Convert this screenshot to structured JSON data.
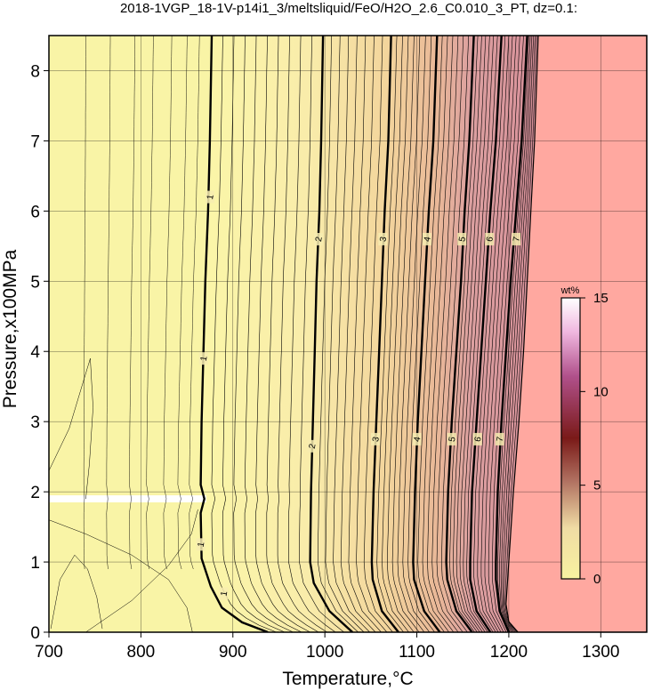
{
  "chart_data": {
    "type": "heatmap",
    "title": "2018-1VGP_18-1V-p14i1_3/meltsliquid/FeO/H2O_2.6_C0.010_3_PT, dz=0.1:",
    "xlabel": "Temperature,°C",
    "ylabel": "Pressure,x100MPa",
    "xlim": [
      700,
      1350
    ],
    "ylim": [
      0,
      8.5
    ],
    "x_ticks": [
      700,
      800,
      900,
      1000,
      1100,
      1200,
      1300
    ],
    "y_ticks": [
      0,
      1,
      2,
      3,
      4,
      5,
      6,
      7,
      8
    ],
    "grid": true,
    "colorbar": {
      "unit": "wt%",
      "range": [
        0,
        15
      ],
      "ticks": [
        0,
        5,
        10,
        15
      ],
      "colors": [
        "#f5f0a0",
        "#f0dba0",
        "#d8a08a",
        "#8a2a20",
        "#c060a0",
        "#ffffff"
      ]
    },
    "background_color": "#f9f4a6",
    "high_region_color": "#ffa8a0",
    "gap_band_pressure": 1.9,
    "major_contours": [
      {
        "level": "1",
        "path": [
          [
            938,
            0
          ],
          [
            910,
            0.14
          ],
          [
            888,
            0.35
          ],
          [
            876,
            0.65
          ],
          [
            866,
            1.05
          ],
          [
            865,
            1.7
          ],
          [
            869,
            1.9
          ],
          [
            865,
            2.1
          ],
          [
            866,
            3.0
          ],
          [
            868,
            4.0
          ],
          [
            870,
            5.0
          ],
          [
            873,
            6.0
          ],
          [
            875,
            7.0
          ],
          [
            877,
            8.5
          ]
        ],
        "label_points": [
          [
            875,
            6.2
          ],
          [
            868,
            3.9
          ],
          [
            865,
            1.25
          ],
          [
            890,
            0.55
          ]
        ]
      },
      {
        "level": "2",
        "path": [
          [
            1030,
            0
          ],
          [
            1005,
            0.3
          ],
          [
            988,
            0.7
          ],
          [
            984,
            1.0
          ],
          [
            985,
            2.0
          ],
          [
            987,
            3.0
          ],
          [
            989,
            4.0
          ],
          [
            991,
            5.0
          ],
          [
            994,
            6.0
          ],
          [
            996,
            7.0
          ],
          [
            998,
            8.5
          ]
        ],
        "label_points": [
          [
            993,
            5.6
          ],
          [
            986,
            2.65
          ]
        ]
      },
      {
        "level": "3",
        "path": [
          [
            1080,
            0
          ],
          [
            1062,
            0.3
          ],
          [
            1052,
            0.75
          ],
          [
            1051,
            1.0
          ],
          [
            1053,
            2.0
          ],
          [
            1056,
            3.0
          ],
          [
            1059,
            4.0
          ],
          [
            1062,
            5.0
          ],
          [
            1065,
            6.0
          ],
          [
            1069,
            7.0
          ],
          [
            1072,
            8.5
          ]
        ],
        "label_points": [
          [
            1063,
            5.6
          ],
          [
            1055,
            2.75
          ]
        ]
      },
      {
        "level": "4",
        "path": [
          [
            1125,
            0
          ],
          [
            1108,
            0.3
          ],
          [
            1097,
            0.75
          ],
          [
            1096,
            1.0
          ],
          [
            1098,
            2.0
          ],
          [
            1101,
            3.0
          ],
          [
            1105,
            4.0
          ],
          [
            1109,
            5.0
          ],
          [
            1113,
            6.0
          ],
          [
            1118,
            7.0
          ],
          [
            1122,
            8.5
          ]
        ],
        "label_points": [
          [
            1111,
            5.6
          ],
          [
            1100,
            2.75
          ]
        ]
      },
      {
        "level": "5",
        "path": [
          [
            1160,
            0
          ],
          [
            1143,
            0.3
          ],
          [
            1133,
            0.75
          ],
          [
            1132,
            1.0
          ],
          [
            1134,
            2.0
          ],
          [
            1138,
            3.0
          ],
          [
            1143,
            4.0
          ],
          [
            1148,
            5.0
          ],
          [
            1152,
            6.0
          ],
          [
            1157,
            7.0
          ],
          [
            1162,
            8.5
          ]
        ],
        "label_points": [
          [
            1149,
            5.6
          ],
          [
            1138,
            2.75
          ]
        ]
      },
      {
        "level": "6",
        "path": [
          [
            1180,
            0
          ],
          [
            1165,
            0.3
          ],
          [
            1158,
            0.75
          ],
          [
            1158,
            1.0
          ],
          [
            1160,
            2.0
          ],
          [
            1165,
            3.0
          ],
          [
            1170,
            4.0
          ],
          [
            1175,
            5.0
          ],
          [
            1180,
            6.0
          ],
          [
            1186,
            7.0
          ],
          [
            1192,
            8.5
          ]
        ],
        "label_points": [
          [
            1179,
            5.6
          ],
          [
            1166,
            2.75
          ]
        ]
      },
      {
        "level": "7",
        "path": [
          [
            1200,
            0
          ],
          [
            1190,
            0.3
          ],
          [
            1186,
            0.75
          ],
          [
            1186,
            1.0
          ],
          [
            1188,
            2.0
          ],
          [
            1192,
            3.0
          ],
          [
            1197,
            4.0
          ],
          [
            1202,
            5.0
          ],
          [
            1208,
            6.0
          ],
          [
            1214,
            7.0
          ],
          [
            1220,
            8.5
          ]
        ],
        "label_points": [
          [
            1208,
            5.6
          ],
          [
            1190,
            2.75
          ]
        ]
      }
    ],
    "boundary": [
      [
        1210,
        0
      ],
      [
        1200,
        0.15
      ],
      [
        1197,
        0.4
      ],
      [
        1200,
        1.0
      ],
      [
        1205,
        2.0
      ],
      [
        1211,
        3.0
      ],
      [
        1216,
        4.0
      ],
      [
        1220,
        5.0
      ],
      [
        1224,
        6.0
      ],
      [
        1228,
        7.0
      ],
      [
        1232,
        8.5
      ]
    ]
  }
}
